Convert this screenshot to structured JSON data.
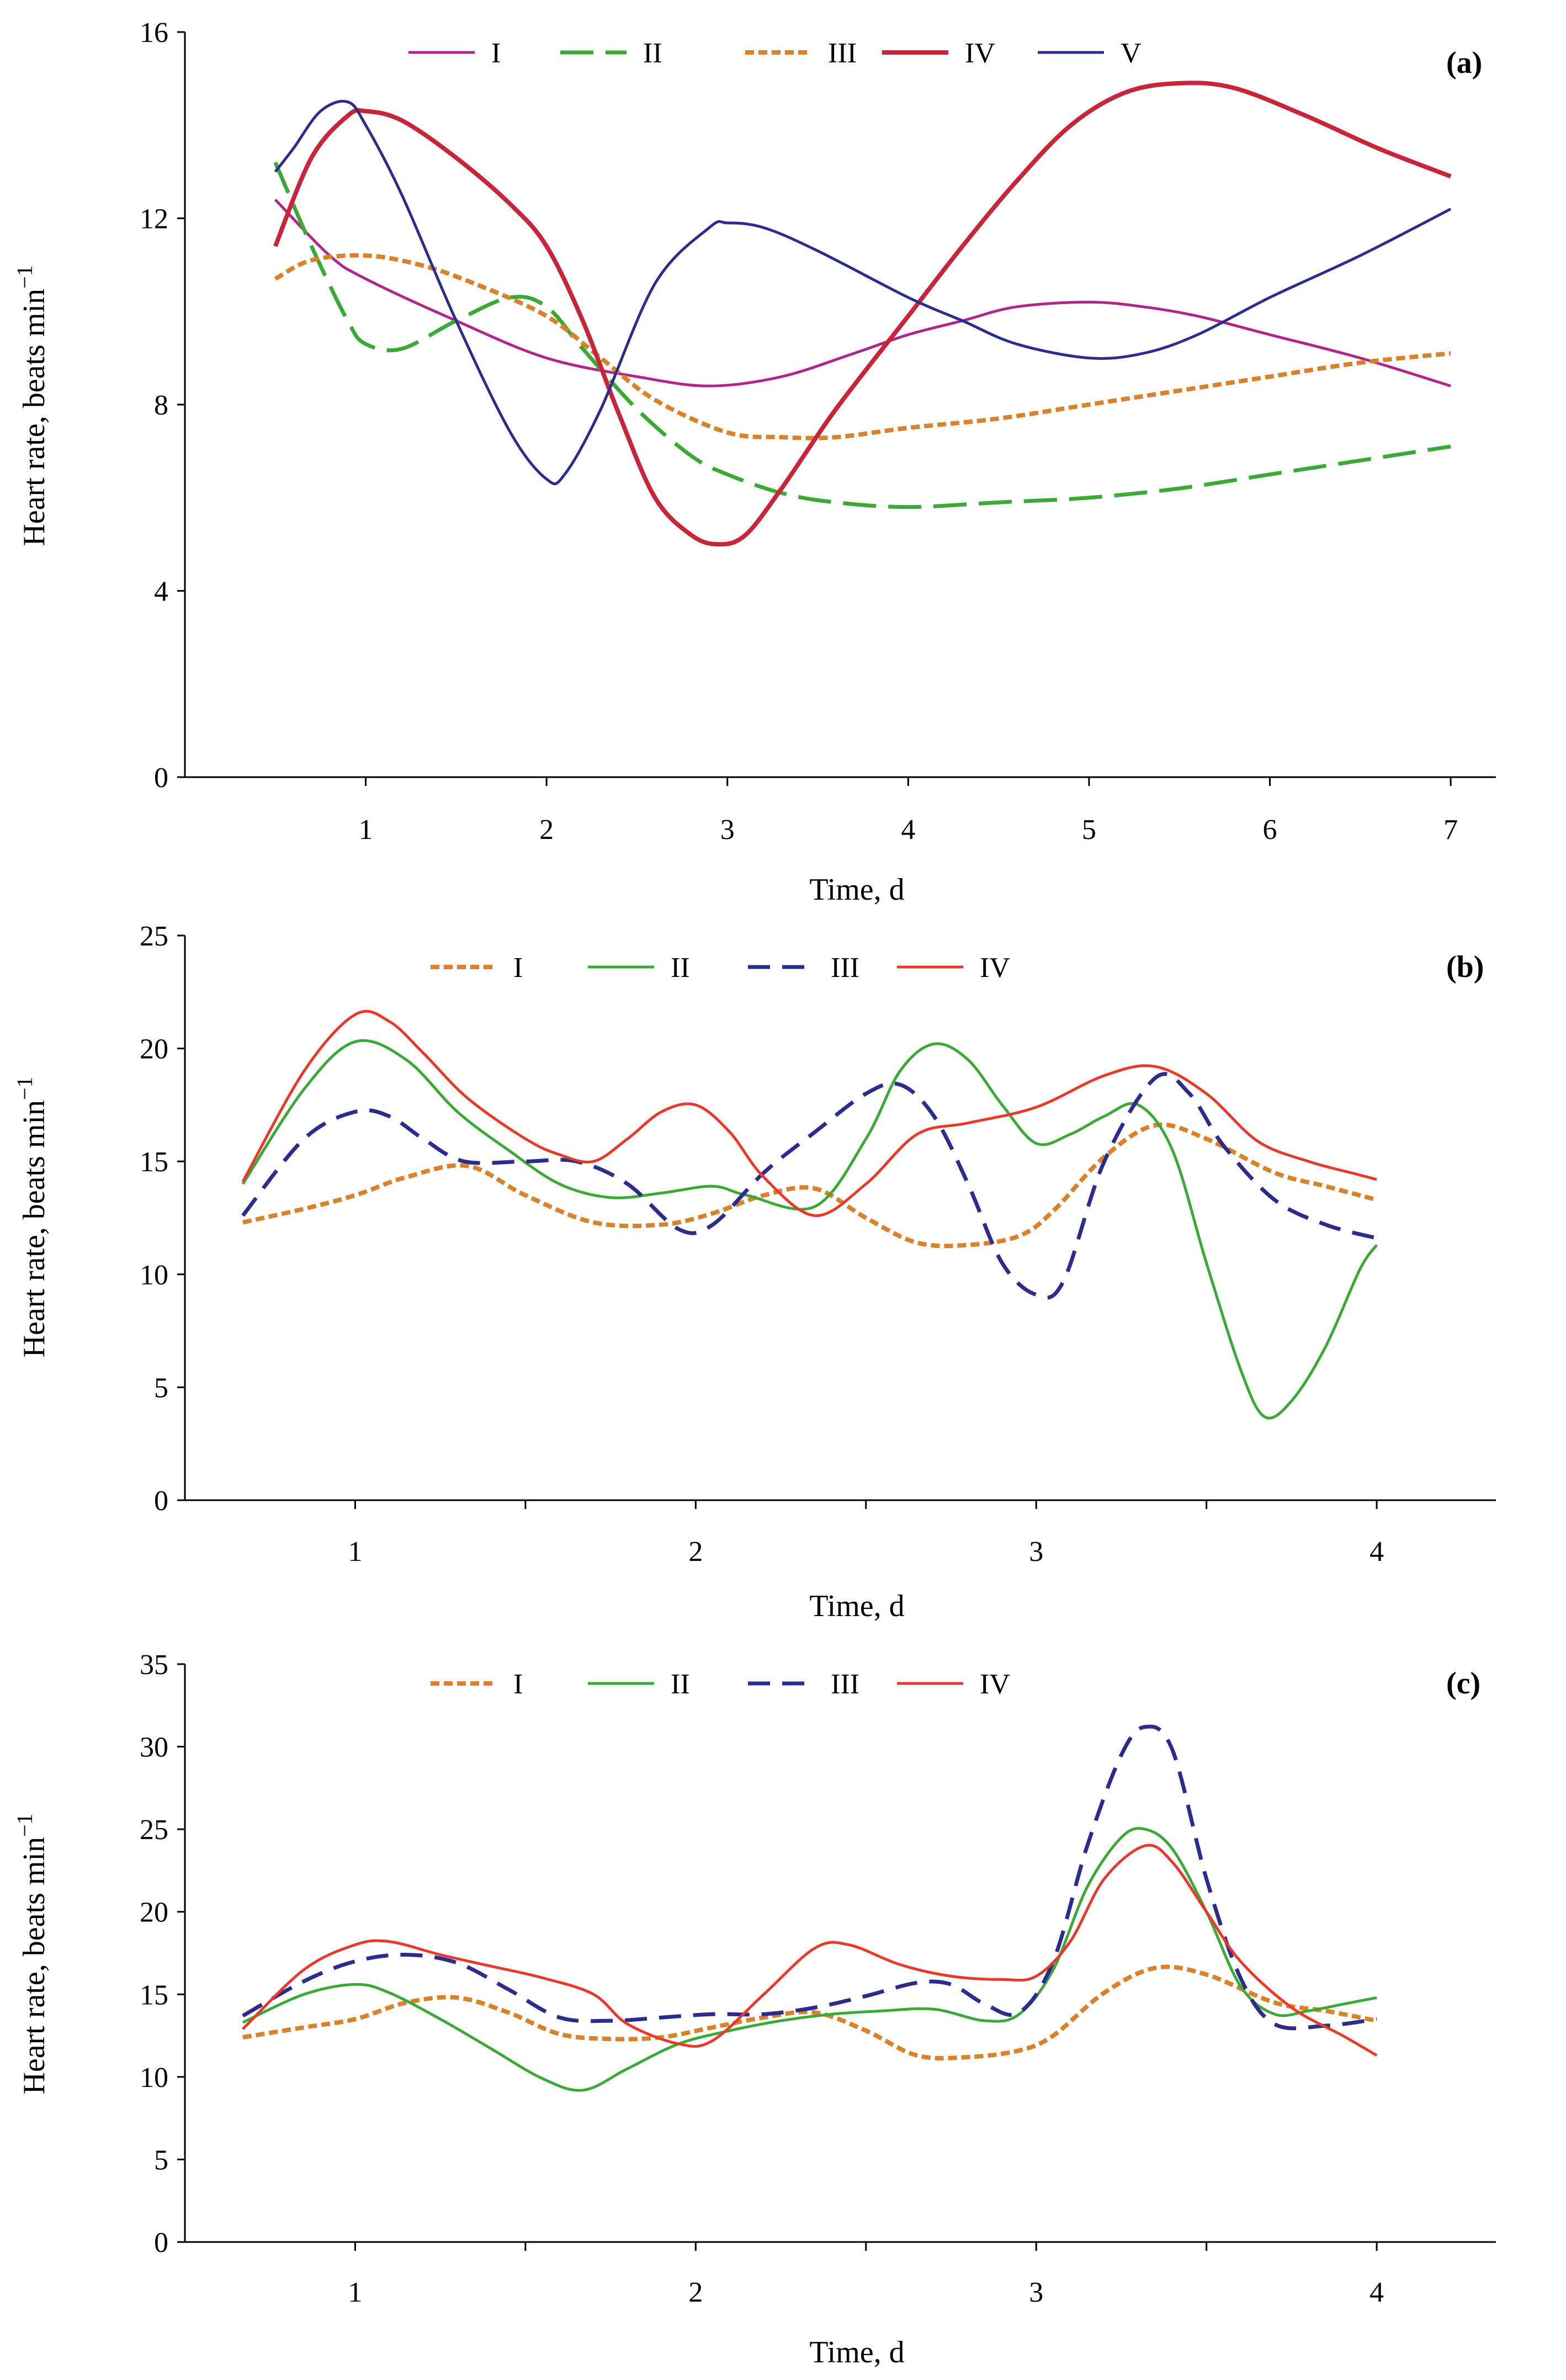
{
  "chart_data": [
    {
      "type": "line",
      "panel_label": "(a)",
      "xlabel": "Time, d",
      "ylabel": "Heart rate, beats min",
      "ylabel_sup": "−1",
      "xlim": [
        0,
        7.25
      ],
      "ylim": [
        0,
        16
      ],
      "xticks": [
        1,
        2,
        3,
        4,
        5,
        6,
        7
      ],
      "xtick_labels": [
        "1",
        "2",
        "3",
        "4",
        "5",
        "6",
        "7"
      ],
      "yticks": [
        0,
        4,
        8,
        12,
        16
      ],
      "ytick_labels": [
        "0",
        "4",
        "8",
        "12",
        "16"
      ],
      "legend_position": "top",
      "series": [
        {
          "name": "I",
          "color": "#b0278a",
          "style": "solid",
          "x": [
            0.5,
            0.8,
            1.0,
            1.5,
            2.0,
            2.5,
            2.9,
            3.3,
            3.7,
            4.0,
            4.3,
            4.6,
            5.0,
            5.3,
            5.6,
            6.0,
            6.5,
            7.0
          ],
          "y": [
            12.4,
            11.2,
            10.7,
            9.8,
            9.0,
            8.6,
            8.4,
            8.6,
            9.1,
            9.5,
            9.8,
            10.1,
            10.2,
            10.1,
            9.9,
            9.5,
            9.0,
            8.4
          ]
        },
        {
          "name": "II",
          "color": "#3aa935",
          "style": "longdash",
          "x": [
            0.5,
            0.7,
            0.9,
            1.0,
            1.2,
            1.5,
            1.8,
            2.0,
            2.2,
            2.5,
            2.8,
            3.0,
            3.3,
            3.6,
            4.0,
            4.5,
            5.0,
            5.5,
            6.0,
            6.5,
            7.0
          ],
          "y": [
            13.2,
            11.4,
            9.8,
            9.3,
            9.2,
            9.8,
            10.3,
            10.1,
            9.2,
            7.9,
            6.9,
            6.5,
            6.1,
            5.9,
            5.8,
            5.9,
            6.0,
            6.2,
            6.5,
            6.8,
            7.1
          ]
        },
        {
          "name": "III",
          "color": "#d9822b",
          "style": "dotted",
          "x": [
            0.5,
            0.7,
            1.0,
            1.3,
            1.6,
            2.0,
            2.3,
            2.6,
            3.0,
            3.3,
            3.6,
            4.0,
            4.5,
            5.0,
            5.5,
            6.0,
            6.5,
            7.0
          ],
          "y": [
            10.7,
            11.1,
            11.2,
            11.0,
            10.6,
            9.9,
            9.0,
            8.1,
            7.4,
            7.3,
            7.3,
            7.5,
            7.7,
            8.0,
            8.3,
            8.6,
            8.9,
            9.1
          ]
        },
        {
          "name": "IV",
          "color": "#c8243a",
          "style": "solid-thick",
          "x": [
            0.5,
            0.7,
            0.9,
            1.0,
            1.2,
            1.5,
            1.8,
            2.0,
            2.2,
            2.4,
            2.6,
            2.8,
            2.95,
            3.1,
            3.3,
            3.6,
            4.0,
            4.3,
            4.6,
            4.9,
            5.2,
            5.5,
            5.8,
            6.2,
            6.6,
            7.0
          ],
          "y": [
            11.4,
            13.3,
            14.2,
            14.3,
            14.1,
            13.3,
            12.3,
            11.4,
            9.8,
            7.8,
            6.0,
            5.2,
            5.0,
            5.2,
            6.2,
            7.9,
            9.9,
            11.4,
            12.8,
            14.0,
            14.7,
            14.9,
            14.8,
            14.2,
            13.5,
            12.9
          ]
        },
        {
          "name": "V",
          "color": "#2c2c8c",
          "style": "solid",
          "x": [
            0.5,
            0.6,
            0.75,
            0.9,
            1.0,
            1.2,
            1.5,
            1.8,
            2.0,
            2.1,
            2.3,
            2.6,
            2.9,
            3.0,
            3.2,
            3.5,
            4.0,
            4.3,
            4.6,
            5.0,
            5.3,
            5.6,
            6.0,
            6.5,
            7.0
          ],
          "y": [
            13.0,
            13.5,
            14.3,
            14.5,
            14.0,
            12.5,
            9.8,
            7.4,
            6.4,
            6.5,
            7.9,
            10.6,
            11.8,
            11.9,
            11.8,
            11.3,
            10.3,
            9.8,
            9.3,
            9.0,
            9.1,
            9.5,
            10.3,
            11.2,
            12.2
          ]
        }
      ]
    },
    {
      "type": "line",
      "panel_label": "(b)",
      "xlabel": "Time, d",
      "ylabel": "Heart rate, beats min",
      "ylabel_sup": "−1",
      "xlim": [
        0.5,
        4.35
      ],
      "ylim": [
        0,
        25
      ],
      "xticks": [
        1,
        2,
        3,
        4
      ],
      "xtick_labels": [
        "1",
        "2",
        "3",
        "4"
      ],
      "minor_xticks": [
        1.5,
        2.5,
        3.5
      ],
      "yticks": [
        0,
        5,
        10,
        15,
        20,
        25
      ],
      "ytick_labels": [
        "0",
        "5",
        "10",
        "15",
        "20",
        "25"
      ],
      "legend_position": "top",
      "series": [
        {
          "name": "I",
          "color": "#d9822b",
          "style": "dotted",
          "x": [
            0.67,
            0.85,
            1.0,
            1.15,
            1.33,
            1.5,
            1.7,
            1.9,
            2.05,
            2.2,
            2.35,
            2.5,
            2.65,
            2.8,
            2.95,
            3.05,
            3.2,
            3.35,
            3.5,
            3.7,
            3.85,
            4.0
          ],
          "y": [
            12.3,
            12.9,
            13.5,
            14.3,
            14.8,
            13.5,
            12.3,
            12.2,
            12.7,
            13.5,
            13.8,
            12.5,
            11.4,
            11.3,
            11.7,
            12.8,
            15.2,
            16.6,
            16.0,
            14.5,
            13.9,
            13.3
          ]
        },
        {
          "name": "II",
          "color": "#3aa935",
          "style": "solid",
          "x": [
            0.67,
            0.85,
            1.0,
            1.15,
            1.3,
            1.45,
            1.6,
            1.75,
            1.9,
            2.05,
            2.15,
            2.35,
            2.5,
            2.6,
            2.7,
            2.8,
            2.9,
            3.0,
            3.1,
            3.2,
            3.3,
            3.4,
            3.5,
            3.6,
            3.67,
            3.75,
            3.85,
            3.95,
            4.0
          ],
          "y": [
            14.0,
            18.2,
            20.3,
            19.5,
            17.2,
            15.5,
            14.0,
            13.4,
            13.6,
            13.9,
            13.5,
            13.0,
            16.0,
            19.0,
            20.2,
            19.5,
            17.5,
            15.8,
            16.2,
            17.0,
            17.5,
            15.5,
            10.5,
            5.8,
            3.7,
            4.4,
            6.8,
            10.2,
            11.3
          ]
        },
        {
          "name": "III",
          "color": "#2c2c8c",
          "style": "dash",
          "x": [
            0.67,
            0.85,
            1.0,
            1.1,
            1.2,
            1.32,
            1.5,
            1.65,
            1.8,
            1.95,
            2.05,
            2.2,
            2.35,
            2.5,
            2.6,
            2.7,
            2.8,
            2.9,
            3.0,
            3.08,
            3.2,
            3.35,
            3.45,
            3.55,
            3.7,
            3.85,
            4.0
          ],
          "y": [
            12.6,
            16.0,
            17.2,
            17.0,
            16.0,
            15.0,
            15.0,
            15.0,
            14.0,
            12.0,
            12.2,
            14.5,
            16.3,
            18.0,
            18.4,
            17.0,
            14.0,
            10.5,
            9.1,
            9.7,
            15.0,
            18.7,
            18.0,
            15.7,
            13.3,
            12.2,
            11.6
          ]
        },
        {
          "name": "IV",
          "color": "#e83a2a",
          "style": "solid",
          "x": [
            0.67,
            0.85,
            1.0,
            1.1,
            1.2,
            1.33,
            1.5,
            1.6,
            1.7,
            1.8,
            1.9,
            2.0,
            2.1,
            2.2,
            2.35,
            2.5,
            2.65,
            2.8,
            3.0,
            3.2,
            3.35,
            3.5,
            3.65,
            3.8,
            3.95,
            4.0
          ],
          "y": [
            14.1,
            19.0,
            21.5,
            21.2,
            19.8,
            17.8,
            16.0,
            15.3,
            15.0,
            16.0,
            17.2,
            17.5,
            16.3,
            14.3,
            12.6,
            14.0,
            16.2,
            16.7,
            17.4,
            18.8,
            19.2,
            18.0,
            15.9,
            15.0,
            14.4,
            14.2
          ]
        }
      ]
    },
    {
      "type": "line",
      "panel_label": "(c)",
      "xlabel": "Time, d",
      "ylabel": "Heart rate, beats min",
      "ylabel_sup": "−1",
      "xlim": [
        0.5,
        4.35
      ],
      "ylim": [
        0,
        35
      ],
      "xticks": [
        1,
        2,
        3,
        4
      ],
      "xtick_labels": [
        "1",
        "2",
        "3",
        "4"
      ],
      "minor_xticks": [
        1.5,
        2.5,
        3.5
      ],
      "yticks": [
        0,
        5,
        10,
        15,
        20,
        25,
        30,
        35
      ],
      "ytick_labels": [
        "0",
        "5",
        "10",
        "15",
        "20",
        "25",
        "30",
        "35"
      ],
      "legend_position": "top",
      "series": [
        {
          "name": "I",
          "color": "#d9822b",
          "style": "dotted",
          "x": [
            0.67,
            0.85,
            1.0,
            1.15,
            1.3,
            1.45,
            1.6,
            1.75,
            1.9,
            2.05,
            2.2,
            2.35,
            2.5,
            2.65,
            2.8,
            2.95,
            3.05,
            3.2,
            3.35,
            3.5,
            3.7,
            3.85,
            4.0
          ],
          "y": [
            12.4,
            13.0,
            13.5,
            14.5,
            14.8,
            13.9,
            12.6,
            12.3,
            12.4,
            13.0,
            13.6,
            13.9,
            12.8,
            11.3,
            11.2,
            11.6,
            12.5,
            15.1,
            16.6,
            16.2,
            14.5,
            14.0,
            13.4
          ]
        },
        {
          "name": "II",
          "color": "#3aa935",
          "style": "solid",
          "x": [
            0.67,
            0.85,
            1.0,
            1.1,
            1.25,
            1.4,
            1.55,
            1.67,
            1.8,
            1.95,
            2.1,
            2.25,
            2.4,
            2.55,
            2.7,
            2.85,
            2.95,
            3.05,
            3.15,
            3.25,
            3.32,
            3.4,
            3.5,
            3.6,
            3.7,
            3.8,
            3.9,
            4.0
          ],
          "y": [
            13.3,
            15.0,
            15.6,
            15.1,
            13.5,
            11.7,
            9.9,
            9.2,
            10.5,
            12.0,
            12.8,
            13.4,
            13.8,
            14.0,
            14.1,
            13.4,
            13.8,
            16.5,
            21.5,
            24.5,
            25.0,
            23.8,
            20.0,
            15.5,
            13.8,
            14.0,
            14.4,
            14.8
          ]
        },
        {
          "name": "III",
          "color": "#2c2c8c",
          "style": "dash",
          "x": [
            0.67,
            0.85,
            1.0,
            1.15,
            1.3,
            1.45,
            1.6,
            1.75,
            1.9,
            2.05,
            2.2,
            2.35,
            2.5,
            2.65,
            2.75,
            2.85,
            2.95,
            3.05,
            3.15,
            3.25,
            3.32,
            3.4,
            3.5,
            3.6,
            3.7,
            3.85,
            4.0
          ],
          "y": [
            13.7,
            15.8,
            17.0,
            17.4,
            16.9,
            15.3,
            13.6,
            13.4,
            13.6,
            13.8,
            13.8,
            14.2,
            14.9,
            15.7,
            15.6,
            14.4,
            13.9,
            17.0,
            24.0,
            29.5,
            31.2,
            29.8,
            22.0,
            16.0,
            13.2,
            13.1,
            13.5
          ]
        },
        {
          "name": "IV",
          "color": "#e83a2a",
          "style": "solid",
          "x": [
            0.67,
            0.85,
            1.0,
            1.1,
            1.25,
            1.4,
            1.55,
            1.7,
            1.8,
            1.95,
            2.05,
            2.2,
            2.35,
            2.45,
            2.6,
            2.75,
            2.9,
            3.0,
            3.1,
            3.2,
            3.32,
            3.4,
            3.5,
            3.6,
            3.75,
            3.9,
            4.0
          ],
          "y": [
            12.9,
            16.5,
            18.0,
            18.2,
            17.4,
            16.7,
            16.0,
            15.0,
            13.2,
            12.0,
            12.2,
            15.0,
            17.8,
            18.0,
            16.8,
            16.1,
            15.9,
            16.1,
            18.2,
            22.0,
            24.0,
            23.0,
            20.0,
            17.0,
            14.2,
            12.5,
            11.3
          ]
        }
      ]
    }
  ]
}
